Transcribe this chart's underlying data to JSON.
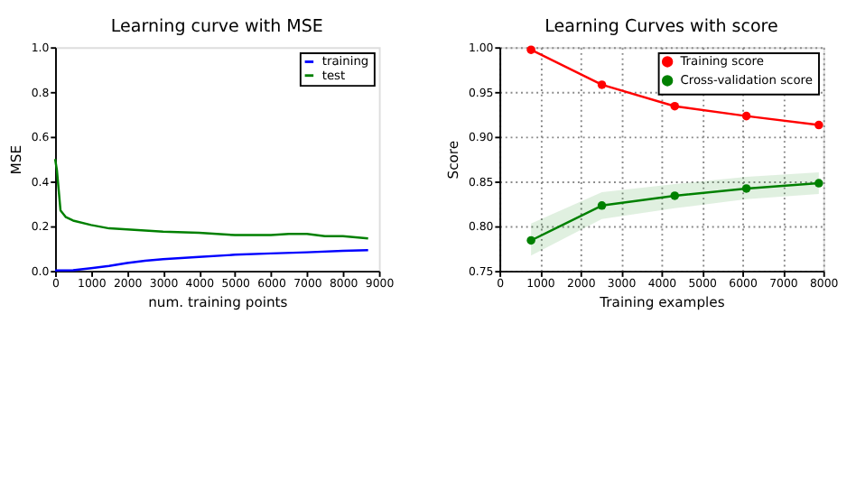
{
  "chart_data": [
    {
      "type": "line",
      "title": "Learning curve with MSE",
      "xlabel": "num. training points",
      "ylabel": "MSE",
      "xlim": [
        0,
        9000
      ],
      "xticks": [
        0,
        1000,
        2000,
        3000,
        4000,
        5000,
        6000,
        7000,
        8000,
        9000
      ],
      "ylim": [
        0,
        1
      ],
      "yticks": [
        {
          "value": 0,
          "label": "0.0"
        },
        0.2,
        0.4,
        0.6,
        0.8,
        {
          "value": 1,
          "label": "1.0"
        }
      ],
      "grid": false,
      "legend": "top right",
      "marker": "none",
      "line_style": "solid",
      "series": [
        {
          "name": "training",
          "color": "#0000ff",
          "x": [
            0,
            500,
            1000,
            1500,
            2000,
            2500,
            3000,
            4000,
            5000,
            6000,
            7000,
            8000,
            8700
          ],
          "values": [
            0.002,
            0.003,
            0.012,
            0.022,
            0.035,
            0.045,
            0.052,
            0.062,
            0.072,
            0.078,
            0.083,
            0.09,
            0.093
          ]
        },
        {
          "name": "test",
          "color": "#008000",
          "x": [
            0,
            50,
            150,
            300,
            500,
            1000,
            1500,
            2000,
            2500,
            3000,
            4000,
            5000,
            6000,
            6500,
            7000,
            7500,
            8000,
            8700
          ],
          "values": [
            0.5,
            0.45,
            0.27,
            0.24,
            0.225,
            0.205,
            0.19,
            0.185,
            0.18,
            0.175,
            0.17,
            0.16,
            0.16,
            0.165,
            0.165,
            0.155,
            0.155,
            0.145
          ]
        }
      ]
    },
    {
      "type": "line",
      "title": "Learning Curves with score",
      "xlabel": "Training examples",
      "ylabel": "Score",
      "xlim": [
        0,
        8000
      ],
      "xticks": [
        0,
        1000,
        2000,
        3000,
        4000,
        5000,
        6000,
        7000,
        8000
      ],
      "ylim": [
        0.75,
        1
      ],
      "yticks": [
        0.75,
        {
          "value": 0.8,
          "label": "0.80"
        },
        0.85,
        {
          "value": 0.9,
          "label": "0.90"
        },
        0.95,
        {
          "value": 1,
          "label": "1.00"
        }
      ],
      "grid": true,
      "legend": "top right",
      "marker": "circle",
      "line_style": "solid",
      "series": [
        {
          "name": "Training score",
          "color": "#ff0000",
          "x": [
            780,
            2530,
            4330,
            6100,
            7890
          ],
          "values": [
            0.997,
            0.958,
            0.934,
            0.923,
            0.913
          ]
        },
        {
          "name": "Cross-validation score",
          "color": "#008000",
          "x": [
            780,
            2530,
            4330,
            6100,
            7890
          ],
          "values": [
            0.784,
            0.823,
            0.834,
            0.842,
            0.848
          ],
          "lower": [
            0.767,
            0.808,
            0.82,
            0.83,
            0.836
          ],
          "upper": [
            0.803,
            0.838,
            0.847,
            0.855,
            0.86
          ]
        }
      ]
    }
  ]
}
